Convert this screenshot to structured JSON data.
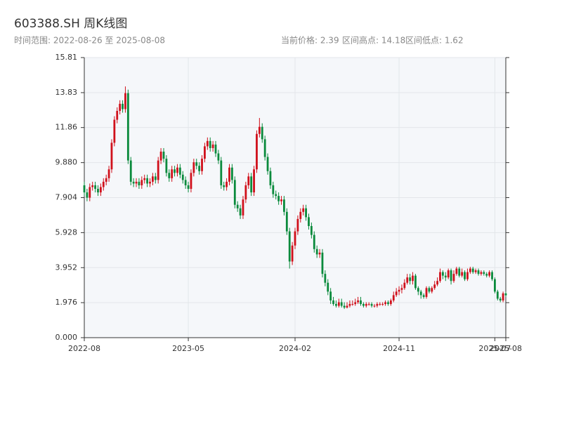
{
  "chart_data": {
    "type": "candlestick",
    "title": "603388.SH 周K线图",
    "subtitle": "时间范围: 2022-08-26 至 2025-08-08",
    "info": [
      "当前价格: 2.39",
      "区间高点: 14.18",
      "区间低点: 1.62"
    ],
    "up_color": "#d0101b",
    "down_color": "#0a8a3c",
    "grid": true,
    "ylim": [
      0,
      15.81
    ],
    "yticks": [
      {
        "value": 0,
        "label": "0.000"
      },
      1.976,
      3.952,
      5.928,
      7.904,
      {
        "value": 9.88,
        "label": "9.880"
      },
      11.86,
      13.83,
      15.81
    ],
    "categories": [
      "2022-08",
      null,
      null,
      null,
      null,
      null,
      null,
      null,
      null,
      null,
      null,
      null,
      null,
      null,
      null,
      null,
      null,
      null,
      null,
      null,
      null,
      null,
      null,
      null,
      null,
      null,
      null,
      null,
      null,
      null,
      null,
      null,
      null,
      null,
      null,
      null,
      null,
      null,
      "2023-05",
      null,
      null,
      null,
      null,
      null,
      null,
      null,
      null,
      null,
      null,
      null,
      null,
      null,
      null,
      null,
      null,
      null,
      null,
      null,
      null,
      null,
      null,
      null,
      null,
      null,
      null,
      null,
      null,
      null,
      null,
      null,
      null,
      null,
      null,
      null,
      null,
      null,
      null,
      "2024-02",
      null,
      null,
      null,
      null,
      null,
      null,
      null,
      null,
      null,
      null,
      null,
      null,
      null,
      null,
      null,
      null,
      null,
      null,
      null,
      null,
      null,
      null,
      null,
      null,
      null,
      null,
      null,
      null,
      null,
      null,
      null,
      null,
      null,
      null,
      null,
      null,
      null,
      "2024-11",
      null,
      null,
      null,
      null,
      null,
      null,
      null,
      null,
      null,
      null,
      null,
      null,
      null,
      null,
      null,
      null,
      null,
      null,
      null,
      null,
      null,
      null,
      null,
      null,
      null,
      null,
      null,
      null,
      null,
      null,
      null,
      null,
      null,
      null,
      "2025-07",
      null,
      null,
      null,
      "2025-08"
    ],
    "open": [
      8.6,
      8.2,
      7.9,
      8.5,
      8.6,
      8.4,
      8.2,
      8.5,
      8.8,
      9.0,
      9.5,
      11.0,
      12.3,
      12.8,
      13.2,
      12.9,
      13.8,
      10.0,
      8.8,
      8.7,
      8.8,
      8.6,
      8.9,
      9.0,
      8.7,
      8.8,
      9.1,
      8.9,
      10.0,
      10.5,
      10.1,
      9.3,
      9.0,
      9.5,
      9.3,
      9.6,
      9.2,
      8.9,
      8.6,
      8.4,
      9.3,
      9.9,
      9.7,
      9.4,
      10.1,
      10.8,
      11.1,
      10.7,
      10.9,
      10.4,
      10.0,
      8.6,
      8.5,
      8.8,
      9.6,
      8.9,
      7.5,
      7.3,
      6.9,
      7.8,
      8.6,
      9.1,
      8.2,
      9.5,
      11.5,
      11.9,
      11.2,
      10.2,
      9.4,
      8.6,
      8.1,
      8.0,
      7.7,
      7.8,
      7.1,
      6.0,
      4.3,
      5.2,
      6.0,
      6.7,
      7.1,
      7.3,
      6.8,
      6.3,
      5.8,
      5.0,
      4.7,
      4.8,
      3.6,
      3.1,
      2.6,
      2.1,
      1.9,
      1.8,
      2.0,
      1.8,
      1.7,
      1.8,
      1.9,
      1.9,
      2.0,
      2.1,
      1.9,
      1.8,
      1.9,
      1.9,
      1.8,
      1.8,
      1.9,
      1.9,
      1.9,
      2.0,
      1.9,
      2.1,
      2.4,
      2.6,
      2.7,
      2.8,
      3.1,
      3.4,
      3.2,
      3.5,
      2.8,
      2.6,
      2.4,
      2.3,
      2.8,
      2.6,
      2.8,
      3.0,
      3.2,
      3.7,
      3.5,
      3.4,
      3.8,
      3.2,
      3.6,
      3.9,
      3.5,
      3.7,
      3.3,
      3.7,
      3.9,
      3.7,
      3.8,
      3.6,
      3.7,
      3.6,
      3.5,
      3.7,
      3.3,
      2.6,
      2.2,
      2.1,
      2.5
    ],
    "high": [
      8.8,
      8.4,
      8.7,
      8.8,
      8.8,
      8.6,
      8.7,
      9.0,
      9.2,
      9.7,
      11.2,
      12.5,
      13.0,
      13.4,
      13.4,
      14.18,
      14.0,
      10.2,
      9.0,
      9.0,
      9.0,
      9.1,
      9.2,
      9.2,
      9.0,
      9.3,
      9.3,
      10.2,
      10.7,
      10.7,
      10.3,
      9.5,
      9.7,
      9.7,
      9.8,
      9.8,
      9.4,
      9.1,
      8.8,
      9.5,
      10.1,
      10.1,
      9.9,
      10.3,
      11.0,
      11.3,
      11.3,
      11.1,
      11.1,
      10.6,
      10.2,
      8.8,
      9.0,
      9.8,
      9.8,
      9.1,
      7.7,
      7.5,
      8.0,
      8.8,
      9.3,
      9.3,
      9.7,
      11.7,
      12.4,
      12.1,
      11.4,
      10.4,
      9.6,
      8.8,
      8.3,
      8.2,
      8.0,
      8.0,
      7.3,
      6.2,
      5.4,
      6.2,
      6.9,
      7.3,
      7.5,
      7.5,
      7.0,
      6.5,
      6.0,
      5.2,
      5.0,
      5.0,
      3.8,
      3.3,
      2.8,
      2.3,
      2.1,
      2.2,
      2.2,
      2.0,
      2.0,
      2.1,
      2.1,
      2.2,
      2.3,
      2.3,
      2.0,
      2.0,
      2.0,
      2.0,
      1.9,
      2.0,
      2.0,
      2.0,
      2.1,
      2.1,
      2.2,
      2.6,
      2.8,
      2.9,
      3.0,
      3.3,
      3.6,
      3.6,
      3.7,
      3.6,
      2.9,
      2.7,
      2.5,
      2.9,
      2.9,
      2.9,
      3.2,
      3.4,
      3.9,
      3.8,
      3.7,
      3.9,
      3.9,
      3.8,
      4.0,
      4.0,
      3.9,
      3.8,
      3.9,
      4.0,
      4.0,
      3.9,
      3.9,
      3.8,
      3.8,
      3.7,
      3.8,
      3.8,
      3.4,
      2.7,
      2.3,
      2.6,
      2.6
    ],
    "low": [
      8.0,
      7.7,
      7.7,
      8.3,
      8.2,
      8.0,
      8.0,
      8.3,
      8.6,
      8.8,
      9.3,
      10.8,
      12.1,
      12.6,
      12.7,
      12.7,
      9.8,
      8.6,
      8.5,
      8.5,
      8.4,
      8.4,
      8.7,
      8.5,
      8.5,
      8.6,
      8.7,
      8.7,
      9.8,
      9.9,
      9.1,
      8.8,
      8.8,
      9.1,
      9.1,
      9.0,
      8.7,
      8.4,
      8.2,
      8.2,
      9.1,
      9.5,
      9.2,
      9.2,
      9.9,
      10.6,
      10.5,
      10.5,
      10.2,
      9.8,
      8.4,
      8.3,
      8.3,
      8.6,
      8.7,
      7.3,
      7.1,
      6.7,
      6.7,
      7.6,
      8.4,
      8.0,
      8.0,
      9.3,
      11.3,
      11.0,
      10.0,
      9.2,
      8.4,
      7.9,
      7.8,
      7.5,
      7.5,
      6.9,
      5.8,
      3.9,
      4.1,
      5.0,
      5.8,
      6.5,
      6.9,
      6.6,
      6.1,
      5.6,
      4.8,
      4.5,
      4.5,
      3.4,
      2.9,
      2.4,
      1.9,
      1.8,
      1.7,
      1.7,
      1.7,
      1.62,
      1.65,
      1.7,
      1.8,
      1.8,
      1.9,
      1.8,
      1.7,
      1.7,
      1.8,
      1.7,
      1.7,
      1.7,
      1.8,
      1.8,
      1.8,
      1.8,
      1.8,
      2.0,
      2.3,
      2.4,
      2.5,
      2.7,
      3.0,
      3.0,
      3.0,
      2.7,
      2.4,
      2.2,
      2.2,
      2.2,
      2.5,
      2.5,
      2.7,
      2.9,
      3.1,
      3.3,
      3.2,
      3.3,
      3.0,
      3.1,
      3.5,
      3.4,
      3.4,
      3.2,
      3.2,
      3.6,
      3.6,
      3.6,
      3.5,
      3.5,
      3.5,
      3.4,
      3.4,
      3.2,
      2.5,
      2.1,
      2.0,
      2.0,
      2.3
    ],
    "close": [
      8.2,
      7.9,
      8.5,
      8.6,
      8.4,
      8.2,
      8.5,
      8.8,
      9.0,
      9.5,
      11.0,
      12.3,
      12.8,
      13.2,
      12.9,
      13.8,
      10.0,
      8.8,
      8.7,
      8.8,
      8.6,
      8.9,
      9.0,
      8.7,
      8.8,
      9.1,
      8.9,
      10.0,
      10.5,
      10.1,
      9.3,
      9.0,
      9.5,
      9.3,
      9.6,
      9.2,
      8.9,
      8.6,
      8.4,
      9.3,
      9.9,
      9.7,
      9.4,
      10.1,
      10.8,
      11.1,
      10.7,
      10.9,
      10.4,
      10.0,
      8.6,
      8.5,
      8.8,
      9.6,
      8.9,
      7.5,
      7.3,
      6.9,
      7.8,
      8.6,
      9.1,
      8.2,
      9.5,
      11.5,
      11.9,
      11.2,
      10.2,
      9.4,
      8.6,
      8.1,
      8.0,
      7.7,
      7.8,
      7.1,
      6.0,
      4.3,
      5.2,
      6.0,
      6.7,
      7.1,
      7.3,
      6.8,
      6.3,
      5.8,
      5.0,
      4.7,
      4.8,
      3.6,
      3.1,
      2.6,
      2.1,
      1.9,
      1.8,
      2.0,
      1.8,
      1.7,
      1.8,
      1.9,
      1.9,
      2.0,
      2.1,
      1.9,
      1.8,
      1.9,
      1.9,
      1.8,
      1.8,
      1.9,
      1.9,
      1.9,
      2.0,
      1.9,
      2.1,
      2.4,
      2.6,
      2.7,
      2.8,
      3.1,
      3.4,
      3.2,
      3.5,
      2.8,
      2.6,
      2.4,
      2.3,
      2.8,
      2.6,
      2.8,
      3.0,
      3.2,
      3.7,
      3.5,
      3.4,
      3.8,
      3.2,
      3.6,
      3.9,
      3.5,
      3.7,
      3.3,
      3.7,
      3.9,
      3.7,
      3.8,
      3.6,
      3.7,
      3.6,
      3.5,
      3.7,
      3.3,
      2.6,
      2.2,
      2.1,
      2.5,
      2.39
    ]
  }
}
